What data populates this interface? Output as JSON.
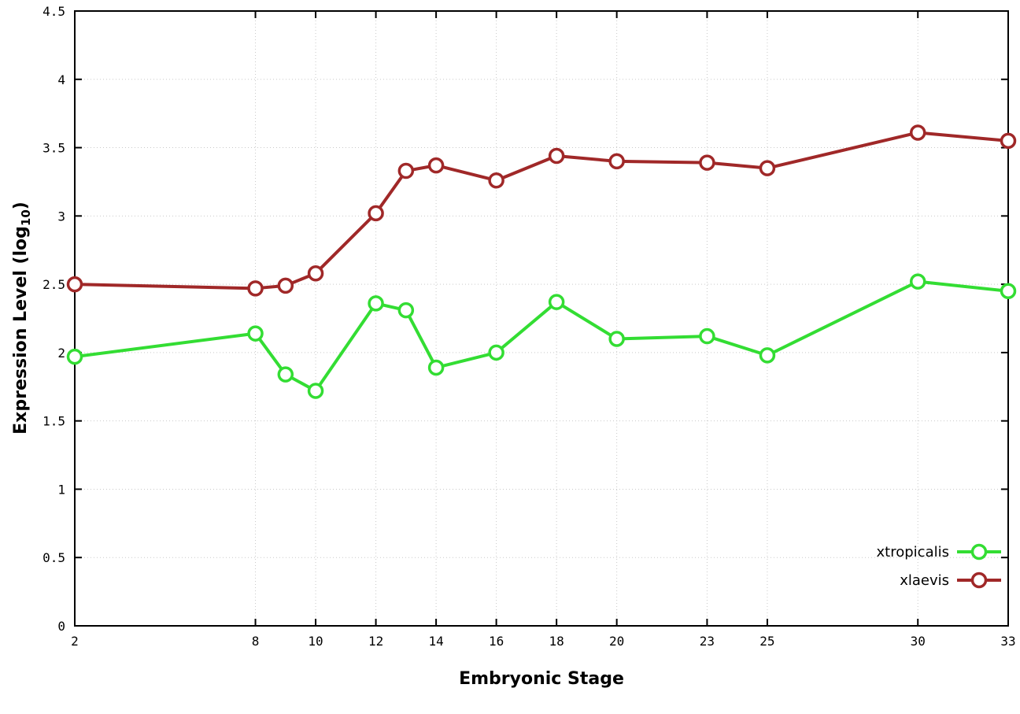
{
  "chart_data": {
    "type": "line",
    "title": "",
    "xlabel": "Embryonic Stage",
    "ylabel_main": "Expression Level (log",
    "ylabel_sub": "10",
    "ylabel_close": ")",
    "x": [
      2,
      8,
      9,
      10,
      12,
      13,
      14,
      16,
      18,
      20,
      23,
      25,
      30,
      33
    ],
    "xlim": [
      2,
      33
    ],
    "ylim": [
      0,
      4.5
    ],
    "xticks": [
      2,
      8,
      10,
      12,
      14,
      16,
      18,
      20,
      23,
      25,
      30,
      33
    ],
    "xtick_labels": [
      "2",
      "8",
      "10",
      "12",
      "14",
      "16",
      "18",
      "20",
      "23",
      "25",
      "30",
      "33"
    ],
    "yticks": [
      0,
      0.5,
      1,
      1.5,
      2,
      2.5,
      3,
      3.5,
      4,
      4.5
    ],
    "ytick_labels": [
      "0",
      "0.5",
      "1",
      "1.5",
      "2",
      "2.5",
      "3",
      "3.5",
      "4",
      "4.5"
    ],
    "grid": true,
    "legend_position": "bottom-right",
    "marker": "open-circle",
    "series": [
      {
        "name": "xtropicalis",
        "color": "#33dd33",
        "values": [
          1.97,
          2.14,
          1.84,
          1.72,
          2.36,
          2.31,
          1.89,
          2.0,
          2.37,
          2.1,
          2.12,
          1.98,
          2.52,
          2.45
        ]
      },
      {
        "name": "xlaevis",
        "color": "#a02828",
        "values": [
          2.5,
          2.47,
          2.49,
          2.58,
          3.02,
          3.33,
          3.37,
          3.26,
          3.44,
          3.4,
          3.39,
          3.35,
          3.61,
          3.55
        ]
      }
    ]
  }
}
